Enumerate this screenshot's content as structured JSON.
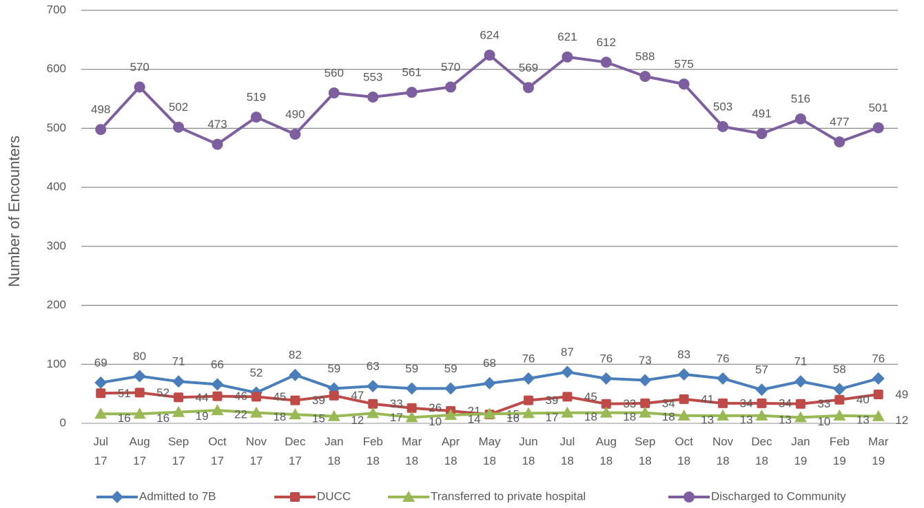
{
  "chart_data": {
    "type": "line",
    "y_label": "Number of Encounters",
    "categories": [
      "Jul 17",
      "Aug 17",
      "Sep 17",
      "Oct 17",
      "Nov 17",
      "Dec 17",
      "Jan 18",
      "Feb 18",
      "Mar 18",
      "Apr 18",
      "May 18",
      "Jun 18",
      "Jul 18",
      "Aug 18",
      "Sep 18",
      "Oct 18",
      "Nov 18",
      "Dec 18",
      "Jan 19",
      "Feb 19",
      "Mar 19"
    ],
    "series": [
      {
        "name": "Admitted to 7B",
        "color": "#4a7ebb",
        "values": [
          69,
          80,
          71,
          66,
          52,
          82,
          59,
          63,
          59,
          59,
          68,
          76,
          87,
          76,
          73,
          83,
          76,
          57,
          71,
          58,
          76
        ]
      },
      {
        "name": "DUCC",
        "color": "#be4b48",
        "values": [
          51,
          52,
          44,
          46,
          45,
          39,
          47,
          33,
          26,
          21,
          15,
          39,
          45,
          33,
          34,
          41,
          34,
          34,
          33,
          40,
          49
        ]
      },
      {
        "name": "Transferred to private hospital",
        "color": "#98b954",
        "values": [
          16,
          16,
          19,
          22,
          18,
          15,
          12,
          17,
          10,
          14,
          16,
          17,
          18,
          18,
          18,
          13,
          13,
          13,
          10,
          13,
          12
        ]
      },
      {
        "name": "Discharged to Community",
        "color": "#7d5fa0",
        "values": [
          498,
          570,
          502,
          473,
          519,
          490,
          560,
          553,
          561,
          570,
          624,
          569,
          621,
          612,
          588,
          575,
          503,
          491,
          516,
          477,
          501
        ]
      }
    ],
    "ylim": [
      0,
      700
    ],
    "yticks": [
      0,
      100,
      200,
      300,
      400,
      500,
      600,
      700
    ],
    "grid": true
  }
}
